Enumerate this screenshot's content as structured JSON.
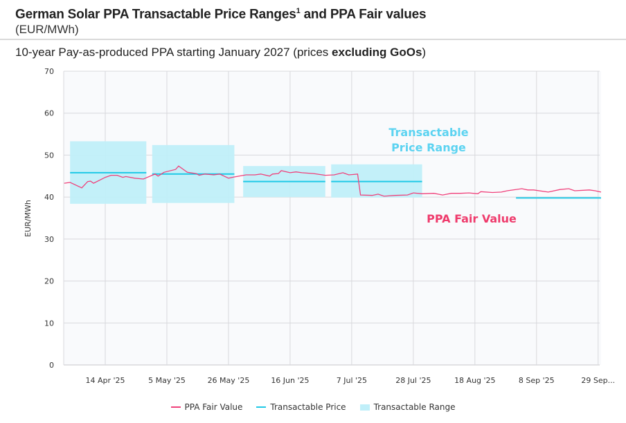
{
  "header": {
    "title": "German Solar PPA Transactable Price Ranges",
    "title_sup": "1",
    "title_suffix": " and PPA Fair values",
    "unit": "(EUR/MWh)",
    "subtitle_prefix": "10-year Pay-as-produced PPA starting January 2027 (prices ",
    "subtitle_bold": "excluding GoOs",
    "subtitle_suffix": ")"
  },
  "colors": {
    "fair_value": "#f0407a",
    "price": "#1ec8e6",
    "range": "#c0eff9",
    "annotation_range": "#5cd3f1",
    "annotation_fair": "#ef3b6c",
    "grid": "#d8d8dc"
  },
  "chart_data": {
    "type": "line",
    "ylabel": "EUR/MWh",
    "ylim": [
      0,
      70
    ],
    "yticks": [
      0,
      10,
      20,
      30,
      40,
      50,
      60,
      70
    ],
    "xlim": [
      "2025-03-31",
      "2025-09-30"
    ],
    "xticks": [
      {
        "date": "2025-04-14",
        "label": "14 Apr '25"
      },
      {
        "date": "2025-05-05",
        "label": "5 May '25"
      },
      {
        "date": "2025-05-26",
        "label": "26 May '25"
      },
      {
        "date": "2025-06-16",
        "label": "16 Jun '25"
      },
      {
        "date": "2025-07-07",
        "label": "7 Jul '25"
      },
      {
        "date": "2025-07-28",
        "label": "28 Jul '25"
      },
      {
        "date": "2025-08-18",
        "label": "18 Aug '25"
      },
      {
        "date": "2025-09-08",
        "label": "8 Sep '25"
      },
      {
        "date": "2025-09-29",
        "label": "29 Sep..."
      }
    ],
    "grid": true,
    "legend_position": "bottom",
    "annotations": [
      {
        "lines": [
          "Transactable",
          "Price Range"
        ],
        "series": "range"
      },
      {
        "lines": [
          "PPA Fair Value"
        ],
        "series": "fair"
      }
    ],
    "series": [
      {
        "name": "PPA Fair Value",
        "type": "line",
        "points": [
          [
            "2025-03-31",
            43.3
          ],
          [
            "2025-04-02",
            43.5
          ],
          [
            "2025-04-06",
            42.2
          ],
          [
            "2025-04-08",
            43.7
          ],
          [
            "2025-04-09",
            43.8
          ],
          [
            "2025-04-10",
            43.3
          ],
          [
            "2025-04-14",
            44.7
          ],
          [
            "2025-04-16",
            45.2
          ],
          [
            "2025-04-18",
            45.2
          ],
          [
            "2025-04-20",
            44.7
          ],
          [
            "2025-04-21",
            44.9
          ],
          [
            "2025-04-24",
            44.5
          ],
          [
            "2025-04-27",
            44.3
          ],
          [
            "2025-05-01",
            45.5
          ],
          [
            "2025-05-02",
            45.0
          ],
          [
            "2025-05-04",
            45.9
          ],
          [
            "2025-05-08",
            46.6
          ],
          [
            "2025-05-09",
            47.4
          ],
          [
            "2025-05-12",
            45.9
          ],
          [
            "2025-05-15",
            45.6
          ],
          [
            "2025-05-16",
            45.2
          ],
          [
            "2025-05-18",
            45.5
          ],
          [
            "2025-05-21",
            45.3
          ],
          [
            "2025-05-23",
            45.5
          ],
          [
            "2025-05-26",
            44.5
          ],
          [
            "2025-05-28",
            44.8
          ],
          [
            "2025-06-01",
            45.3
          ],
          [
            "2025-06-04",
            45.3
          ],
          [
            "2025-06-06",
            45.5
          ],
          [
            "2025-06-09",
            45.0
          ],
          [
            "2025-06-10",
            45.5
          ],
          [
            "2025-06-12",
            45.6
          ],
          [
            "2025-06-13",
            46.3
          ],
          [
            "2025-06-16",
            45.8
          ],
          [
            "2025-06-18",
            46.0
          ],
          [
            "2025-06-20",
            45.8
          ],
          [
            "2025-06-24",
            45.6
          ],
          [
            "2025-06-28",
            45.2
          ],
          [
            "2025-07-01",
            45.3
          ],
          [
            "2025-07-04",
            45.8
          ],
          [
            "2025-07-06",
            45.3
          ],
          [
            "2025-07-09",
            45.5
          ],
          [
            "2025-07-10",
            40.5
          ],
          [
            "2025-07-14",
            40.4
          ],
          [
            "2025-07-16",
            40.7
          ],
          [
            "2025-07-18",
            40.2
          ],
          [
            "2025-07-22",
            40.4
          ],
          [
            "2025-07-26",
            40.5
          ],
          [
            "2025-07-28",
            41.0
          ],
          [
            "2025-07-31",
            40.8
          ],
          [
            "2025-08-04",
            40.9
          ],
          [
            "2025-08-07",
            40.5
          ],
          [
            "2025-08-10",
            40.9
          ],
          [
            "2025-08-13",
            40.9
          ],
          [
            "2025-08-16",
            41.0
          ],
          [
            "2025-08-19",
            40.8
          ],
          [
            "2025-08-20",
            41.3
          ],
          [
            "2025-08-24",
            41.1
          ],
          [
            "2025-08-27",
            41.2
          ],
          [
            "2025-08-29",
            41.5
          ],
          [
            "2025-09-03",
            42.0
          ],
          [
            "2025-09-05",
            41.7
          ],
          [
            "2025-09-07",
            41.7
          ],
          [
            "2025-09-12",
            41.2
          ],
          [
            "2025-09-16",
            41.8
          ],
          [
            "2025-09-19",
            42.0
          ],
          [
            "2025-09-21",
            41.5
          ],
          [
            "2025-09-26",
            41.7
          ],
          [
            "2025-09-28",
            41.5
          ],
          [
            "2025-09-30",
            41.2
          ]
        ]
      },
      {
        "name": "Transactable Price",
        "type": "step",
        "segments": [
          {
            "start": "2025-04-02",
            "end": "2025-04-28",
            "value": 45.8
          },
          {
            "start": "2025-04-30",
            "end": "2025-05-28",
            "value": 45.5
          },
          {
            "start": "2025-05-31",
            "end": "2025-06-28",
            "value": 43.7
          },
          {
            "start": "2025-06-30",
            "end": "2025-07-31",
            "value": 43.7
          },
          {
            "start": "2025-09-01",
            "end": "2025-09-30",
            "value": 39.8
          }
        ]
      },
      {
        "name": "Transactable Range",
        "type": "range",
        "segments": [
          {
            "start": "2025-04-02",
            "end": "2025-04-28",
            "low": 38.4,
            "high": 53.3
          },
          {
            "start": "2025-04-30",
            "end": "2025-05-28",
            "low": 38.6,
            "high": 52.4
          },
          {
            "start": "2025-05-31",
            "end": "2025-06-28",
            "low": 40.0,
            "high": 47.4
          },
          {
            "start": "2025-06-30",
            "end": "2025-07-31",
            "low": 39.9,
            "high": 47.8
          }
        ]
      }
    ]
  }
}
